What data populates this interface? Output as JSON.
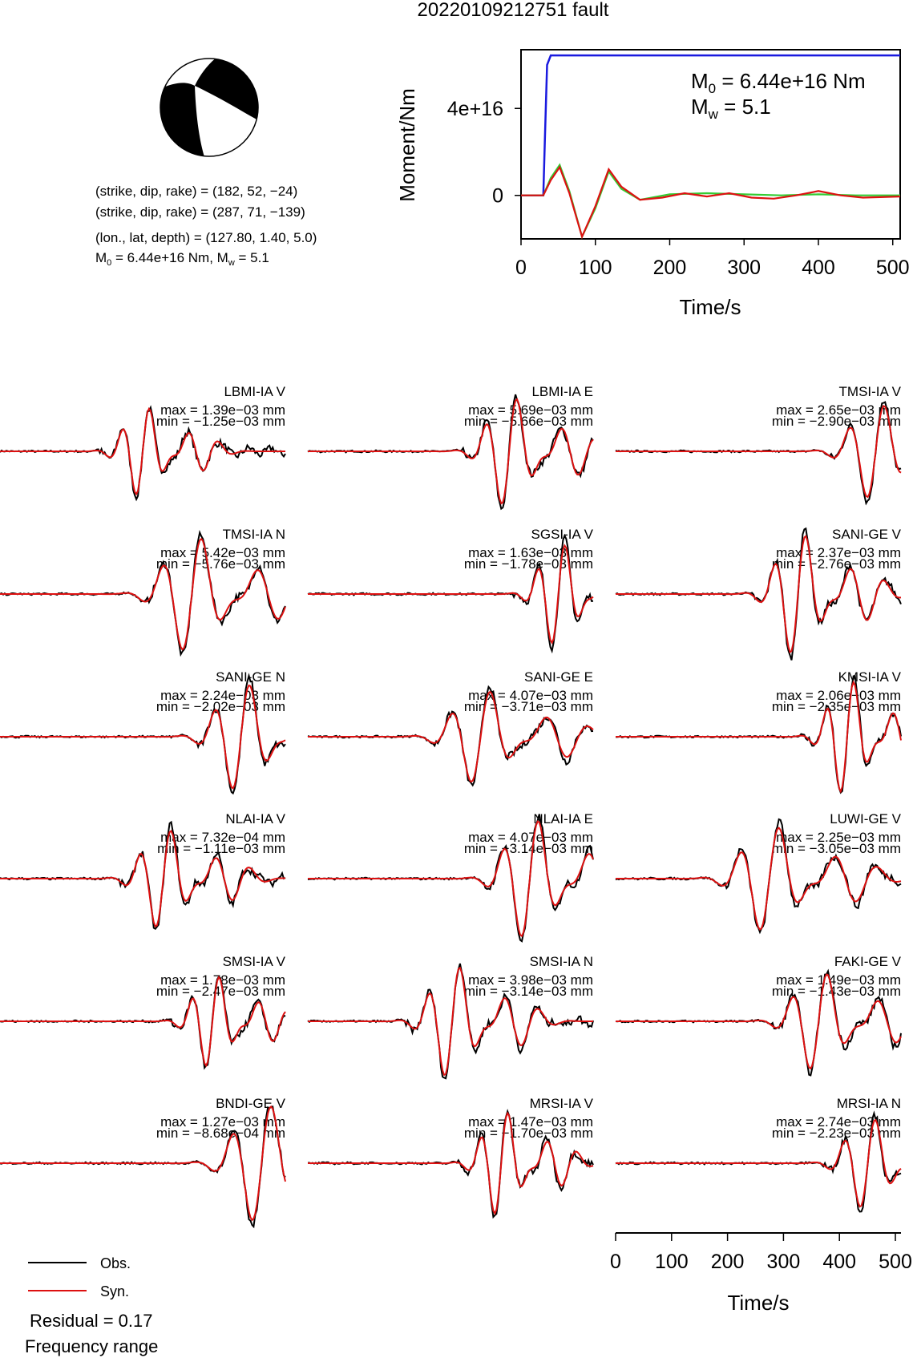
{
  "title": "20220109212751 fault",
  "mechanism": {
    "nodal_plane_1": "(strike, dip, rake) = (182, 52, −24)",
    "nodal_plane_2": "(strike, dip, rake) = (287, 71, −139)",
    "location": "(lon., lat, depth) = (127.80, 1.40, 5.0)",
    "moment_line": "M0 = 6.44e+16 Nm, Mw = 5.1",
    "moment_line_parts": {
      "m": "M",
      "sub0": "0",
      "mid": " = 6.44e+16 Nm, M",
      "subw": "w",
      "end": " = 5.1"
    },
    "colors": {
      "compressional": "#000000",
      "dilatational": "#ffffff"
    }
  },
  "stf_chart": {
    "ylabel": "Moment/Nm",
    "xlabel": "Time/s",
    "xticks": [
      "0",
      "100",
      "200",
      "300",
      "400",
      "500"
    ],
    "xtick_values": [
      0,
      100,
      200,
      300,
      400,
      500
    ],
    "yticks": [
      "0",
      "4e+16"
    ],
    "ytick_values": [
      0,
      4e+16
    ],
    "xlim": [
      0,
      510
    ],
    "ylim": [
      -2e+16,
      6.7e+16
    ],
    "annotation_m0": {
      "label": "M",
      "sub": "0",
      "value": " = 6.44e+16 Nm"
    },
    "annotation_mw": {
      "label": "M",
      "sub": "w",
      "value": " = 5.1"
    },
    "colors": {
      "cumulative": "#1a1adf",
      "rate_green": "#33cc33",
      "rate_red": "#dd1111"
    }
  },
  "waveforms": {
    "xlabel": "Time/s",
    "xticks": [
      "0",
      "100",
      "200",
      "300",
      "400",
      "500"
    ],
    "xtick_values": [
      0,
      100,
      200,
      300,
      400,
      500
    ],
    "xlim": [
      0,
      510
    ],
    "colors": {
      "obs": "#000000",
      "syn": "#dd1111"
    }
  },
  "legend": {
    "obs": "Obs.",
    "syn": "Syn.",
    "residual": "Residual = 0.17",
    "frequency": "Frequency range"
  },
  "chart_data": [
    {
      "type": "line",
      "title": "",
      "xlabel": "Time/s",
      "ylabel": "Moment/Nm",
      "xlim": [
        0,
        510
      ],
      "ylim": [
        -2e+16,
        6.7e+16
      ],
      "series": [
        {
          "color": "#1a1adf",
          "x": [
            0,
            30,
            32,
            35,
            40,
            50,
            100,
            200,
            300,
            400,
            510
          ],
          "y": [
            0,
            0,
            2.5e+16,
            6e+16,
            6.44e+16,
            6.44e+16,
            6.44e+16,
            6.44e+16,
            6.44e+16,
            6.44e+16,
            6.44e+16
          ]
        },
        {
          "color": "#33cc33",
          "x": [
            0,
            30,
            40,
            52,
            65,
            82,
            100,
            118,
            135,
            160,
            200,
            250,
            300,
            350,
            400,
            450,
            510
          ],
          "y": [
            0,
            0,
            8000000000000000.0,
            1.4e+16,
            2000000000000000.0,
            -1.9e+16,
            -6000000000000000.0,
            1.1e+16,
            3000000000000000.0,
            -2000000000000000.0,
            500000000000000.0,
            1000000000000000.0,
            500000000000000.0,
            0.0,
            500000000000000.0,
            0.0,
            0.0
          ]
        },
        {
          "color": "#dd1111",
          "x": [
            0,
            30,
            40,
            52,
            65,
            82,
            100,
            118,
            135,
            160,
            190,
            220,
            250,
            280,
            310,
            340,
            370,
            400,
            430,
            460,
            510
          ],
          "y": [
            0,
            0,
            7000000000000000.0,
            1.3e+16,
            1000000000000000.0,
            -1.9e+16,
            -5000000000000000.0,
            1.2e+16,
            4000000000000000.0,
            -2000000000000000.0,
            -1000000000000000.0,
            1000000000000000.0,
            -500000000000000.0,
            1000000000000000.0,
            -1000000000000000.0,
            -1500000000000000.0,
            0.0,
            2000000000000000.0,
            0.0,
            -1000000000000000.0,
            -500000000000000.0
          ]
        }
      ]
    },
    {
      "type": "table",
      "columns": [
        "station",
        "component",
        "max",
        "min"
      ],
      "rows": [
        [
          "LBMI-IA",
          "V",
          "1.39e−03 mm",
          "−1.25e−03 mm"
        ],
        [
          "LBMI-IA",
          "E",
          "5.69e−03 mm",
          "−5.66e−03 mm"
        ],
        [
          "TMSI-IA",
          "V",
          "2.65e−03 mm",
          "−2.90e−03 mm"
        ],
        [
          "TMSI-IA",
          "N",
          "5.42e−03 mm",
          "−5.76e−03 mm"
        ],
        [
          "SGSI-IA",
          "V",
          "1.63e−03 mm",
          "−1.78e−03 mm"
        ],
        [
          "SANI-GE",
          "V",
          "2.37e−03 mm",
          "−2.76e−03 mm"
        ],
        [
          "SANI-GE",
          "N",
          "2.24e−03 mm",
          "−2.02e−03 mm"
        ],
        [
          "SANI-GE",
          "E",
          "4.07e−03 mm",
          "−3.71e−03 mm"
        ],
        [
          "KMSI-IA",
          "V",
          "2.06e−03 mm",
          "−2.35e−03 mm"
        ],
        [
          "NLAI-IA",
          "V",
          "7.32e−04 mm",
          "−1.11e−03 mm"
        ],
        [
          "NLAI-IA",
          "E",
          "4.07e−03 mm",
          "−3.14e−03 mm"
        ],
        [
          "LUWI-GE",
          "V",
          "2.25e−03 mm",
          "−3.05e−03 mm"
        ],
        [
          "SMSI-IA",
          "V",
          "1.78e−03 mm",
          "−2.47e−03 mm"
        ],
        [
          "SMSI-IA",
          "N",
          "3.98e−03 mm",
          "−3.14e−03 mm"
        ],
        [
          "FAKI-GE",
          "V",
          "1.49e−03 mm",
          "−1.43e−03 mm"
        ],
        [
          "BNDI-GE",
          "V",
          "1.27e−03 mm",
          "−8.68e−04 mm"
        ],
        [
          "MRSI-IA",
          "V",
          "1.47e−03 mm",
          "−1.70e−03 mm"
        ],
        [
          "MRSI-IA",
          "N",
          "2.74e−03 mm",
          "−2.23e−03 mm"
        ]
      ]
    }
  ],
  "stations": [
    {
      "label": "LBMI-IA V",
      "max": "max = 1.39e−03 mm",
      "min": "min = −1.25e−03 mm"
    },
    {
      "label": "LBMI-IA E",
      "max": "max = 5.69e−03 mm",
      "min": "min = −5.66e−03 mm"
    },
    {
      "label": "TMSI-IA V",
      "max": "max = 2.65e−03 mm",
      "min": "min = −2.90e−03 mm"
    },
    {
      "label": "TMSI-IA N",
      "max": "max = 5.42e−03 mm",
      "min": "min = −5.76e−03 mm"
    },
    {
      "label": "SGSI-IA V",
      "max": "max = 1.63e−03 mm",
      "min": "min = −1.78e−03 mm"
    },
    {
      "label": "SANI-GE V",
      "max": "max = 2.37e−03 mm",
      "min": "min = −2.76e−03 mm"
    },
    {
      "label": "SANI-GE N",
      "max": "max = 2.24e−03 mm",
      "min": "min = −2.02e−03 mm"
    },
    {
      "label": "SANI-GE E",
      "max": "max = 4.07e−03 mm",
      "min": "min = −3.71e−03 mm"
    },
    {
      "label": "KMSI-IA V",
      "max": "max = 2.06e−03 mm",
      "min": "min = −2.35e−03 mm"
    },
    {
      "label": "NLAI-IA V",
      "max": "max = 7.32e−04 mm",
      "min": "min = −1.11e−03 mm"
    },
    {
      "label": "NLAI-IA E",
      "max": "max = 4.07e−03 mm",
      "min": "min = −3.14e−03 mm"
    },
    {
      "label": "LUWI-GE V",
      "max": "max = 2.25e−03 mm",
      "min": "min = −3.05e−03 mm"
    },
    {
      "label": "SMSI-IA V",
      "max": "max = 1.78e−03 mm",
      "min": "min = −2.47e−03 mm"
    },
    {
      "label": "SMSI-IA N",
      "max": "max = 3.98e−03 mm",
      "min": "min = −3.14e−03 mm"
    },
    {
      "label": "FAKI-GE V",
      "max": "max = 1.49e−03 mm",
      "min": "min = −1.43e−03 mm"
    },
    {
      "label": "BNDI-GE V",
      "max": "max = 1.27e−03 mm",
      "min": "min = −8.68e−04 mm"
    },
    {
      "label": "MRSI-IA V",
      "max": "max = 1.47e−03 mm",
      "min": "min = −1.70e−03 mm"
    },
    {
      "label": "MRSI-IA N",
      "max": "max = 2.74e−03 mm",
      "min": "min = −2.23e−03 mm"
    }
  ]
}
